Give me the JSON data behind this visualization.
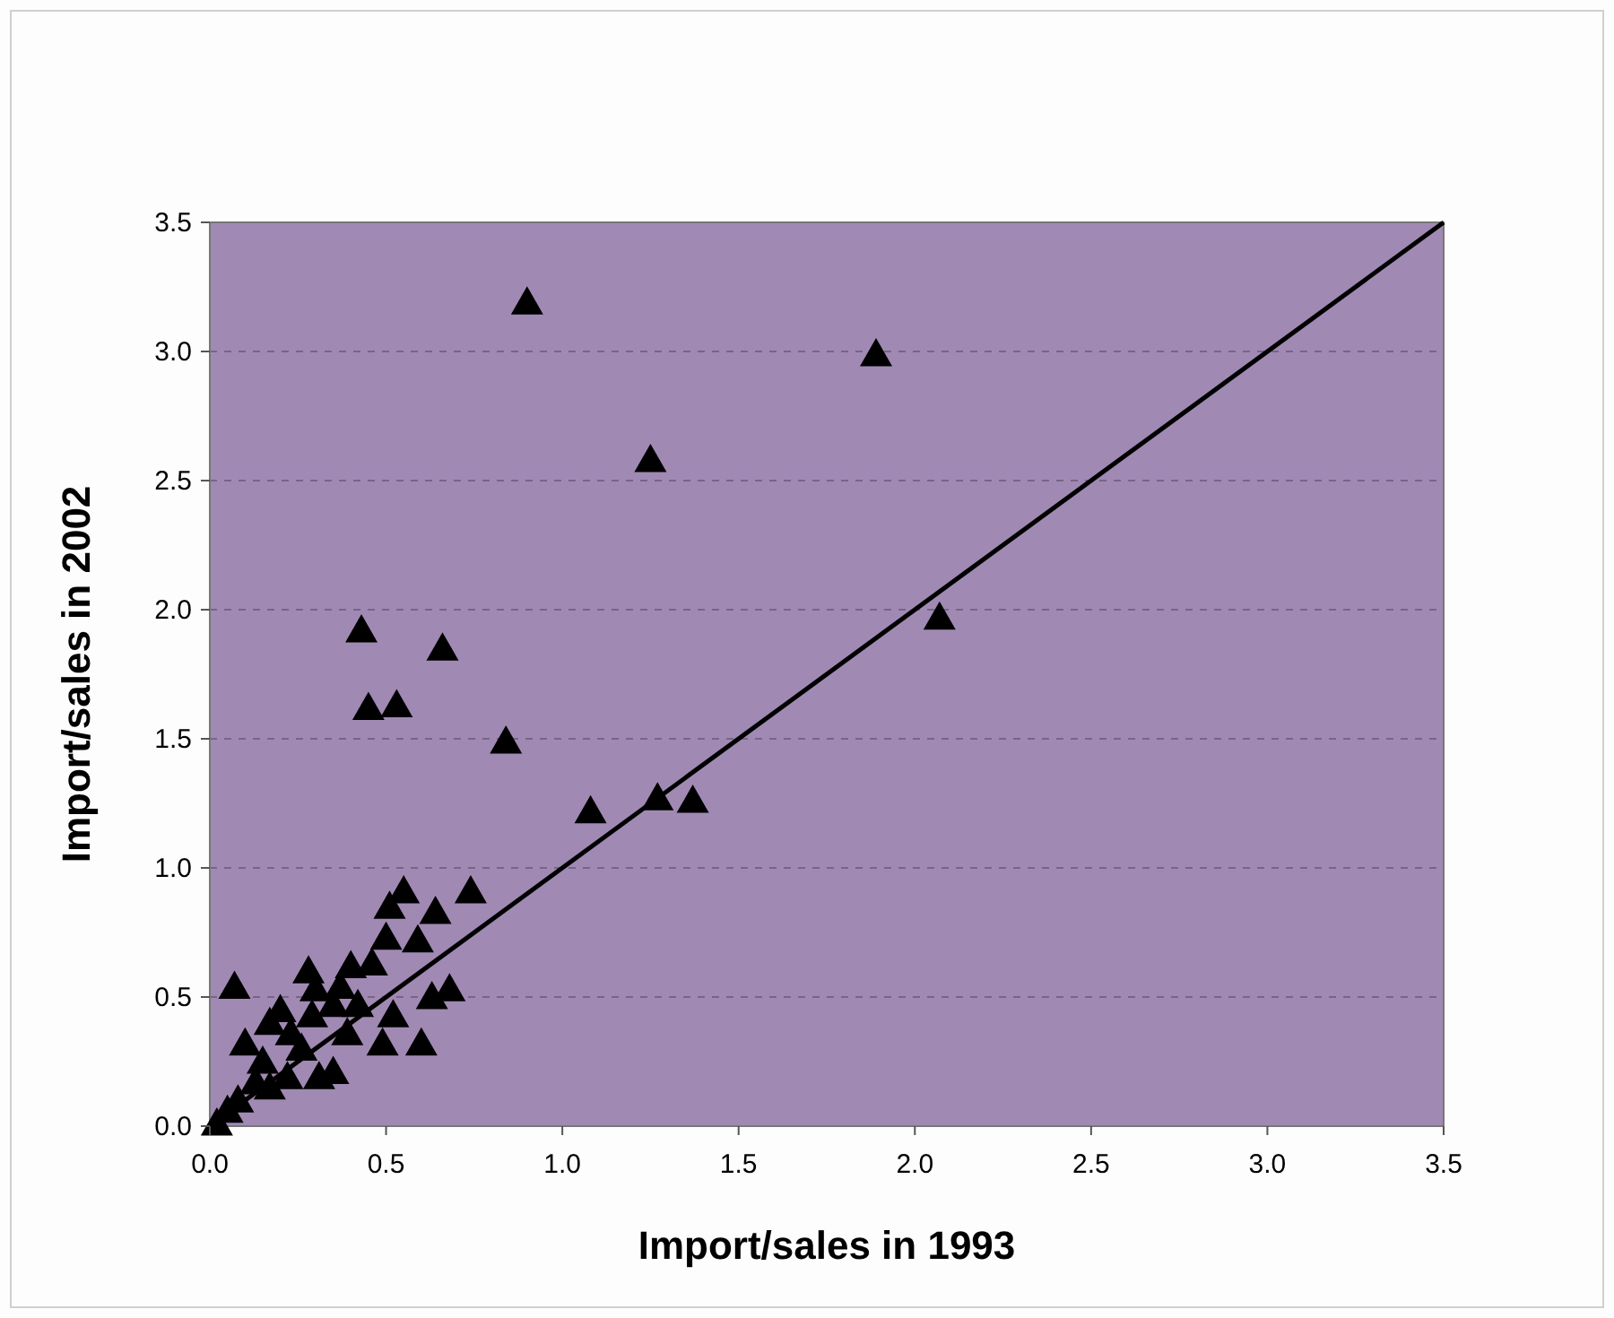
{
  "chart_data": {
    "type": "scatter",
    "xlabel": "Import/sales in 1993",
    "ylabel": "Import/sales in 2002",
    "xlim": [
      0,
      3.5
    ],
    "ylim": [
      0,
      3.5
    ],
    "xticks": [
      {
        "value": 0,
        "label": "0.0"
      },
      {
        "value": 0.5,
        "label": "0.5"
      },
      {
        "value": 1,
        "label": "1.0"
      },
      {
        "value": 1.5,
        "label": "1.5"
      },
      {
        "value": 2,
        "label": "2.0"
      },
      {
        "value": 2.5,
        "label": "2.5"
      },
      {
        "value": 3,
        "label": "3.0"
      },
      {
        "value": 3.5,
        "label": "3.5"
      }
    ],
    "yticks": [
      {
        "value": 0,
        "label": "0.0"
      },
      {
        "value": 0.5,
        "label": "0.5"
      },
      {
        "value": 1,
        "label": "1.0"
      },
      {
        "value": 1.5,
        "label": "1.5"
      },
      {
        "value": 2,
        "label": "2.0"
      },
      {
        "value": 2.5,
        "label": "2.5"
      },
      {
        "value": 3,
        "label": "3.0"
      },
      {
        "value": 3.5,
        "label": "3.5"
      }
    ],
    "grid": "y",
    "series": [
      {
        "marker": "triangle",
        "color": "#000000",
        "x": [
          0.9,
          1.89,
          1.25,
          0.43,
          0.66,
          0.45,
          0.53,
          0.84,
          2.07,
          1.08,
          1.27,
          1.37,
          0.55,
          0.74,
          0.64,
          0.51,
          0.5,
          0.59,
          0.07,
          0.28,
          0.4,
          0.46,
          0.3,
          0.68,
          0.63,
          0.52,
          0.42,
          0.2,
          0.17,
          0.29,
          0.35,
          0.1,
          0.49,
          0.6,
          0.26,
          0.39,
          0.15,
          0.31,
          0.35,
          0.22,
          0.13,
          0.08,
          0.05,
          0.02,
          0.17,
          0.37,
          0.23
        ],
        "values": [
          3.19,
          2.99,
          2.58,
          1.92,
          1.85,
          1.62,
          1.63,
          1.49,
          1.97,
          1.22,
          1.27,
          1.26,
          0.91,
          0.91,
          0.83,
          0.85,
          0.73,
          0.72,
          0.54,
          0.6,
          0.62,
          0.63,
          0.53,
          0.53,
          0.5,
          0.43,
          0.47,
          0.45,
          0.4,
          0.43,
          0.47,
          0.32,
          0.32,
          0.32,
          0.3,
          0.36,
          0.25,
          0.19,
          0.21,
          0.19,
          0.17,
          0.1,
          0.06,
          0.01,
          0.15,
          0.54,
          0.36
        ]
      },
      {
        "type": "line",
        "color": "#000000",
        "x": [
          0,
          3.5
        ],
        "values": [
          0,
          3.5
        ]
      }
    ]
  }
}
